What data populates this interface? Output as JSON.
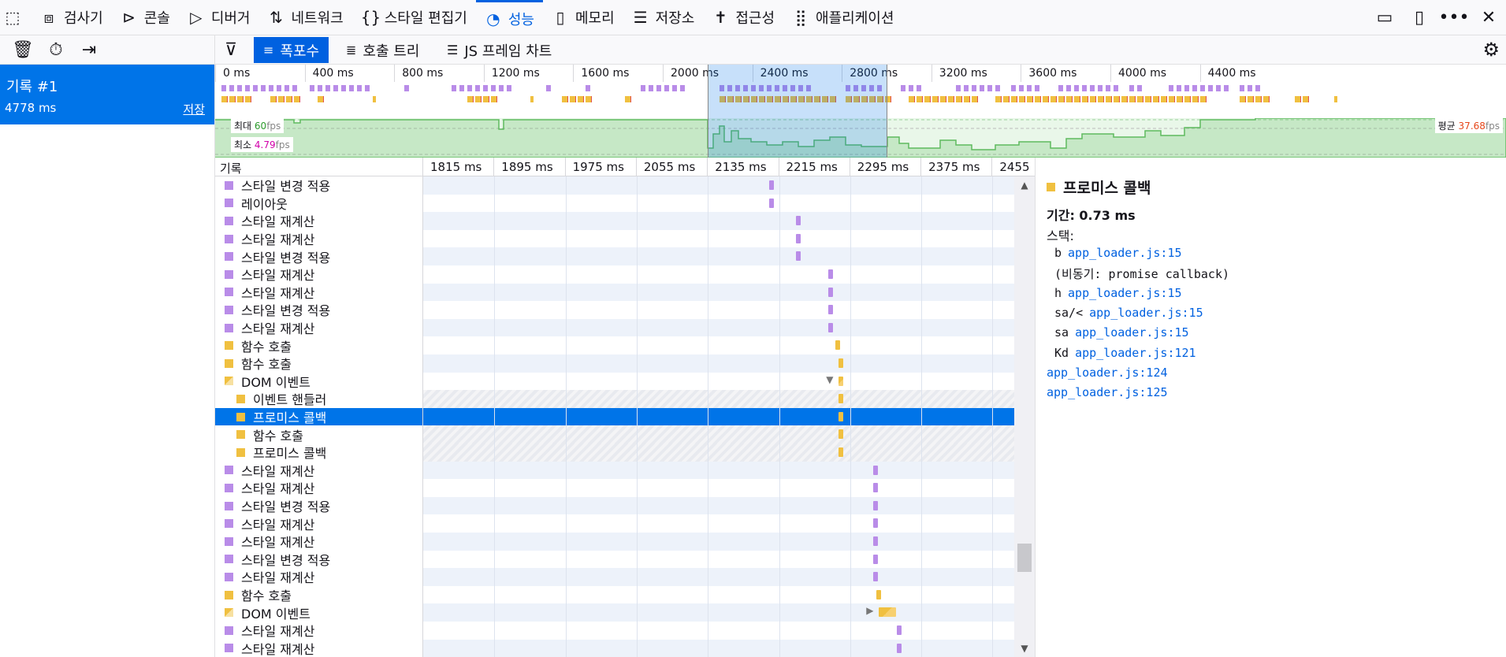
{
  "tabs": [
    {
      "label": "검사기",
      "icon": "inspector-icon",
      "glyph": "⧈"
    },
    {
      "label": "콘솔",
      "icon": "console-icon",
      "glyph": "⊳"
    },
    {
      "label": "디버거",
      "icon": "debugger-icon",
      "glyph": "▷"
    },
    {
      "label": "네트워크",
      "icon": "network-icon",
      "glyph": "⇅"
    },
    {
      "label": "스타일 편집기",
      "icon": "style-editor-icon",
      "glyph": "{}"
    },
    {
      "label": "성능",
      "icon": "performance-icon",
      "glyph": "◔"
    },
    {
      "label": "메모리",
      "icon": "memory-icon",
      "glyph": "▯"
    },
    {
      "label": "저장소",
      "icon": "storage-icon",
      "glyph": "☰"
    },
    {
      "label": "접근성",
      "icon": "accessibility-icon",
      "glyph": "✝"
    },
    {
      "label": "애플리케이션",
      "icon": "application-icon",
      "glyph": "⣿"
    }
  ],
  "active_tab": 5,
  "toolbar": {
    "views": [
      "폭포수",
      "호출 트리",
      "JS 프레임 차트"
    ],
    "active_view": 0
  },
  "recording": {
    "title": "기록 #1",
    "duration": "4778 ms",
    "save": "저장"
  },
  "overview": {
    "ticks": [
      "0 ms",
      "400 ms",
      "800 ms",
      "1200 ms",
      "1600 ms",
      "2000 ms",
      "2400 ms",
      "2800 ms",
      "3200 ms",
      "3600 ms",
      "4000 ms",
      "4400 ms"
    ],
    "fps_max_label": "최대",
    "fps_max_value": "60",
    "fps_min_label": "최소",
    "fps_min_value": "4.79",
    "fps_avg_label": "평균",
    "fps_avg_value": "37.68",
    "fps_unit": "fps"
  },
  "waterfall": {
    "header": "기록",
    "ticks": [
      "1815 ms",
      "1895 ms",
      "1975 ms",
      "2055 ms",
      "2135 ms",
      "2215 ms",
      "2295 ms",
      "2375 ms",
      "2455 ms"
    ],
    "rows": [
      {
        "label": "스타일 변경 적용",
        "kind": "style",
        "indent": 0,
        "bar": 0.585
      },
      {
        "label": "레이아웃",
        "kind": "style",
        "indent": 0,
        "bar": 0.585
      },
      {
        "label": "스타일 재계산",
        "kind": "style",
        "indent": 0,
        "bar": 0.63
      },
      {
        "label": "스타일 재계산",
        "kind": "style",
        "indent": 0,
        "bar": 0.63
      },
      {
        "label": "스타일 변경 적용",
        "kind": "style",
        "indent": 0,
        "bar": 0.63
      },
      {
        "label": "스타일 재계산",
        "kind": "style",
        "indent": 0,
        "bar": 0.685
      },
      {
        "label": "스타일 재계산",
        "kind": "style",
        "indent": 0,
        "bar": 0.685
      },
      {
        "label": "스타일 변경 적용",
        "kind": "style",
        "indent": 0,
        "bar": 0.685
      },
      {
        "label": "스타일 재계산",
        "kind": "style",
        "indent": 0,
        "bar": 0.685
      },
      {
        "label": "함수 호출",
        "kind": "js",
        "indent": 0,
        "bar": 0.697
      },
      {
        "label": "함수 호출",
        "kind": "js",
        "indent": 0,
        "bar": 0.702
      },
      {
        "label": "DOM 이벤트",
        "kind": "dom",
        "indent": 0,
        "bar": 0.702,
        "expanded": true
      },
      {
        "label": "이벤트 핸들러",
        "kind": "js",
        "indent": 1,
        "bar": 0.702
      },
      {
        "label": "프로미스 콜백",
        "kind": "js",
        "indent": 1,
        "bar": 0.702,
        "selected": true
      },
      {
        "label": "함수 호출",
        "kind": "js",
        "indent": 1,
        "bar": 0.702
      },
      {
        "label": "프로미스 콜백",
        "kind": "js",
        "indent": 1,
        "bar": 0.702
      },
      {
        "label": "스타일 재계산",
        "kind": "style",
        "indent": 0,
        "bar": 0.76
      },
      {
        "label": "스타일 재계산",
        "kind": "style",
        "indent": 0,
        "bar": 0.76
      },
      {
        "label": "스타일 변경 적용",
        "kind": "style",
        "indent": 0,
        "bar": 0.76
      },
      {
        "label": "스타일 재계산",
        "kind": "style",
        "indent": 0,
        "bar": 0.76
      },
      {
        "label": "스타일 재계산",
        "kind": "style",
        "indent": 0,
        "bar": 0.76
      },
      {
        "label": "스타일 변경 적용",
        "kind": "style",
        "indent": 0,
        "bar": 0.76
      },
      {
        "label": "스타일 재계산",
        "kind": "style",
        "indent": 0,
        "bar": 0.76
      },
      {
        "label": "함수 호출",
        "kind": "js",
        "indent": 0,
        "bar": 0.765
      },
      {
        "label": "DOM 이벤트",
        "kind": "dom",
        "indent": 0,
        "bar": 0.77,
        "collapsed": true
      },
      {
        "label": "스타일 재계산",
        "kind": "style",
        "indent": 0,
        "bar": 0.8
      },
      {
        "label": "스타일 재계산",
        "kind": "style",
        "indent": 0,
        "bar": 0.8
      }
    ]
  },
  "detail": {
    "title": "프로미스 콜백",
    "duration": "기간: 0.73 ms",
    "stack_label": "스택:",
    "frames": [
      {
        "fn": "b",
        "link": "app_loader.js:15"
      },
      {
        "async": "(비동기: promise callback)"
      },
      {
        "fn": "h",
        "link": "app_loader.js:15"
      },
      {
        "fn": "sa/<",
        "link": "app_loader.js:15"
      },
      {
        "fn": "sa",
        "link": "app_loader.js:15"
      },
      {
        "fn": "Kd",
        "link": "app_loader.js:121"
      },
      {
        "fn": "",
        "link": "app_loader.js:124"
      },
      {
        "fn": "",
        "link": "app_loader.js:125"
      }
    ]
  },
  "colors": {
    "style": "#b98ce8",
    "js": "#f0c040",
    "dom": "#f0c040",
    "accent": "#0074e8",
    "fps": "#5fba5f"
  }
}
